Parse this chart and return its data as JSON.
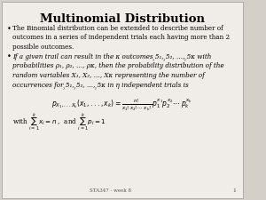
{
  "title": "Multinomial Distribution",
  "background_color": "#d4d0c8",
  "slide_bg": "#f0ede8",
  "title_fontsize": 9.5,
  "body_fontsize": 5.2,
  "footer_text": "STA347 - week 8",
  "footer_page": "1",
  "bullet1": "The Binomial distribution can be extended to describe number of\noutcomes in a series of independent trials each having more than 2\npossible outcomes.",
  "bullet2_line1": "If a given trail can result in the ",
  "math_fontsize": 5.0
}
